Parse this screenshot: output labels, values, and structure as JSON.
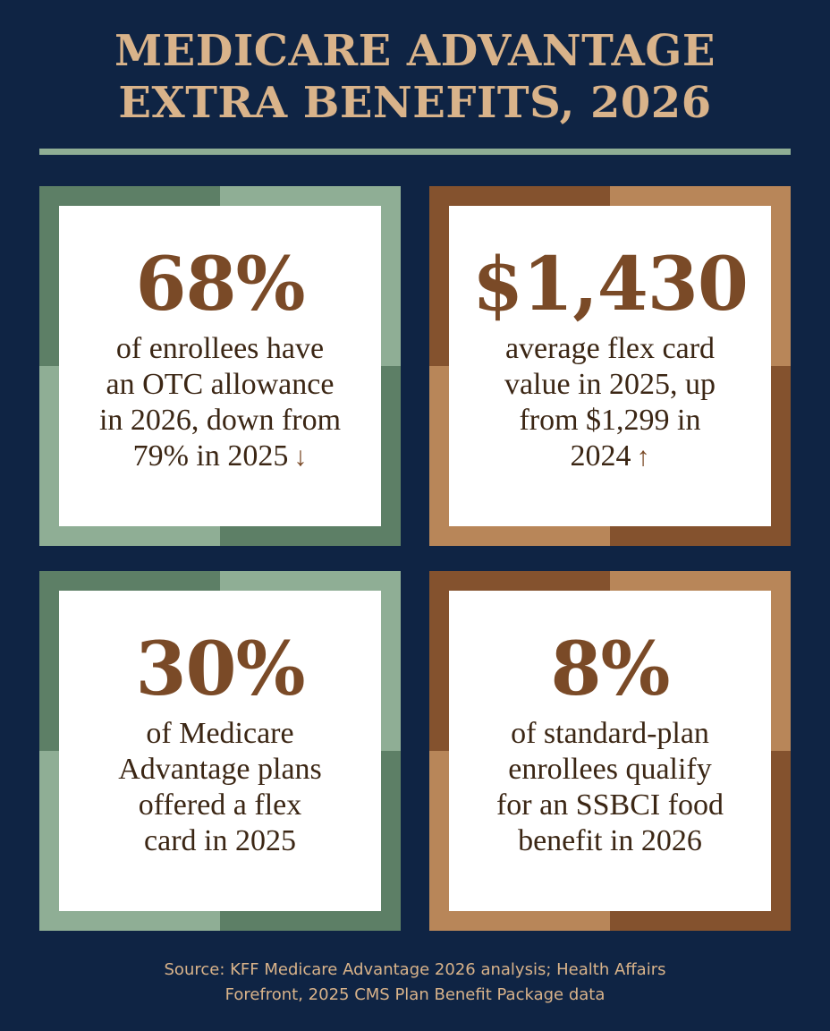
{
  "header": {
    "title_line1": "MEDICARE ADVANTAGE",
    "title_line2": "EXTRA BENEFITS, 2026"
  },
  "cards": [
    {
      "stat": "68%",
      "lines": [
        "of enrollees have",
        "an OTC allowance",
        "in 2026, down from",
        "79% in 2025"
      ],
      "arrow": "↓",
      "arrow_icon": "down-arrow-icon",
      "palette": "green"
    },
    {
      "stat": "$1,430",
      "lines": [
        "average flex card",
        "value in 2025, up",
        "from $1,299 in",
        "2024"
      ],
      "arrow": "↑",
      "arrow_icon": "up-arrow-icon",
      "palette": "brown"
    },
    {
      "stat": "30%",
      "lines": [
        "of Medicare",
        "Advantage plans",
        "offered a flex",
        "card in 2025"
      ],
      "palette": "green"
    },
    {
      "stat": "8%",
      "lines": [
        "of standard-plan",
        "enrollees qualify",
        "for an SSBCI food",
        "benefit in 2026"
      ],
      "palette": "brown"
    }
  ],
  "footer": {
    "source_line1": "Source: KFF Medicare Advantage 2026 analysis; Health Affairs",
    "source_line2": "Forefront, 2025 CMS Plan Benefit Package data"
  },
  "colors": {
    "background": "#0f2444",
    "accent_tan": "#d9b38a",
    "green_dark": "#5d7f66",
    "green_light": "#8fae95",
    "brown_dark": "#84522e",
    "brown_light": "#b88659",
    "stat_brown": "#7a4a27"
  }
}
